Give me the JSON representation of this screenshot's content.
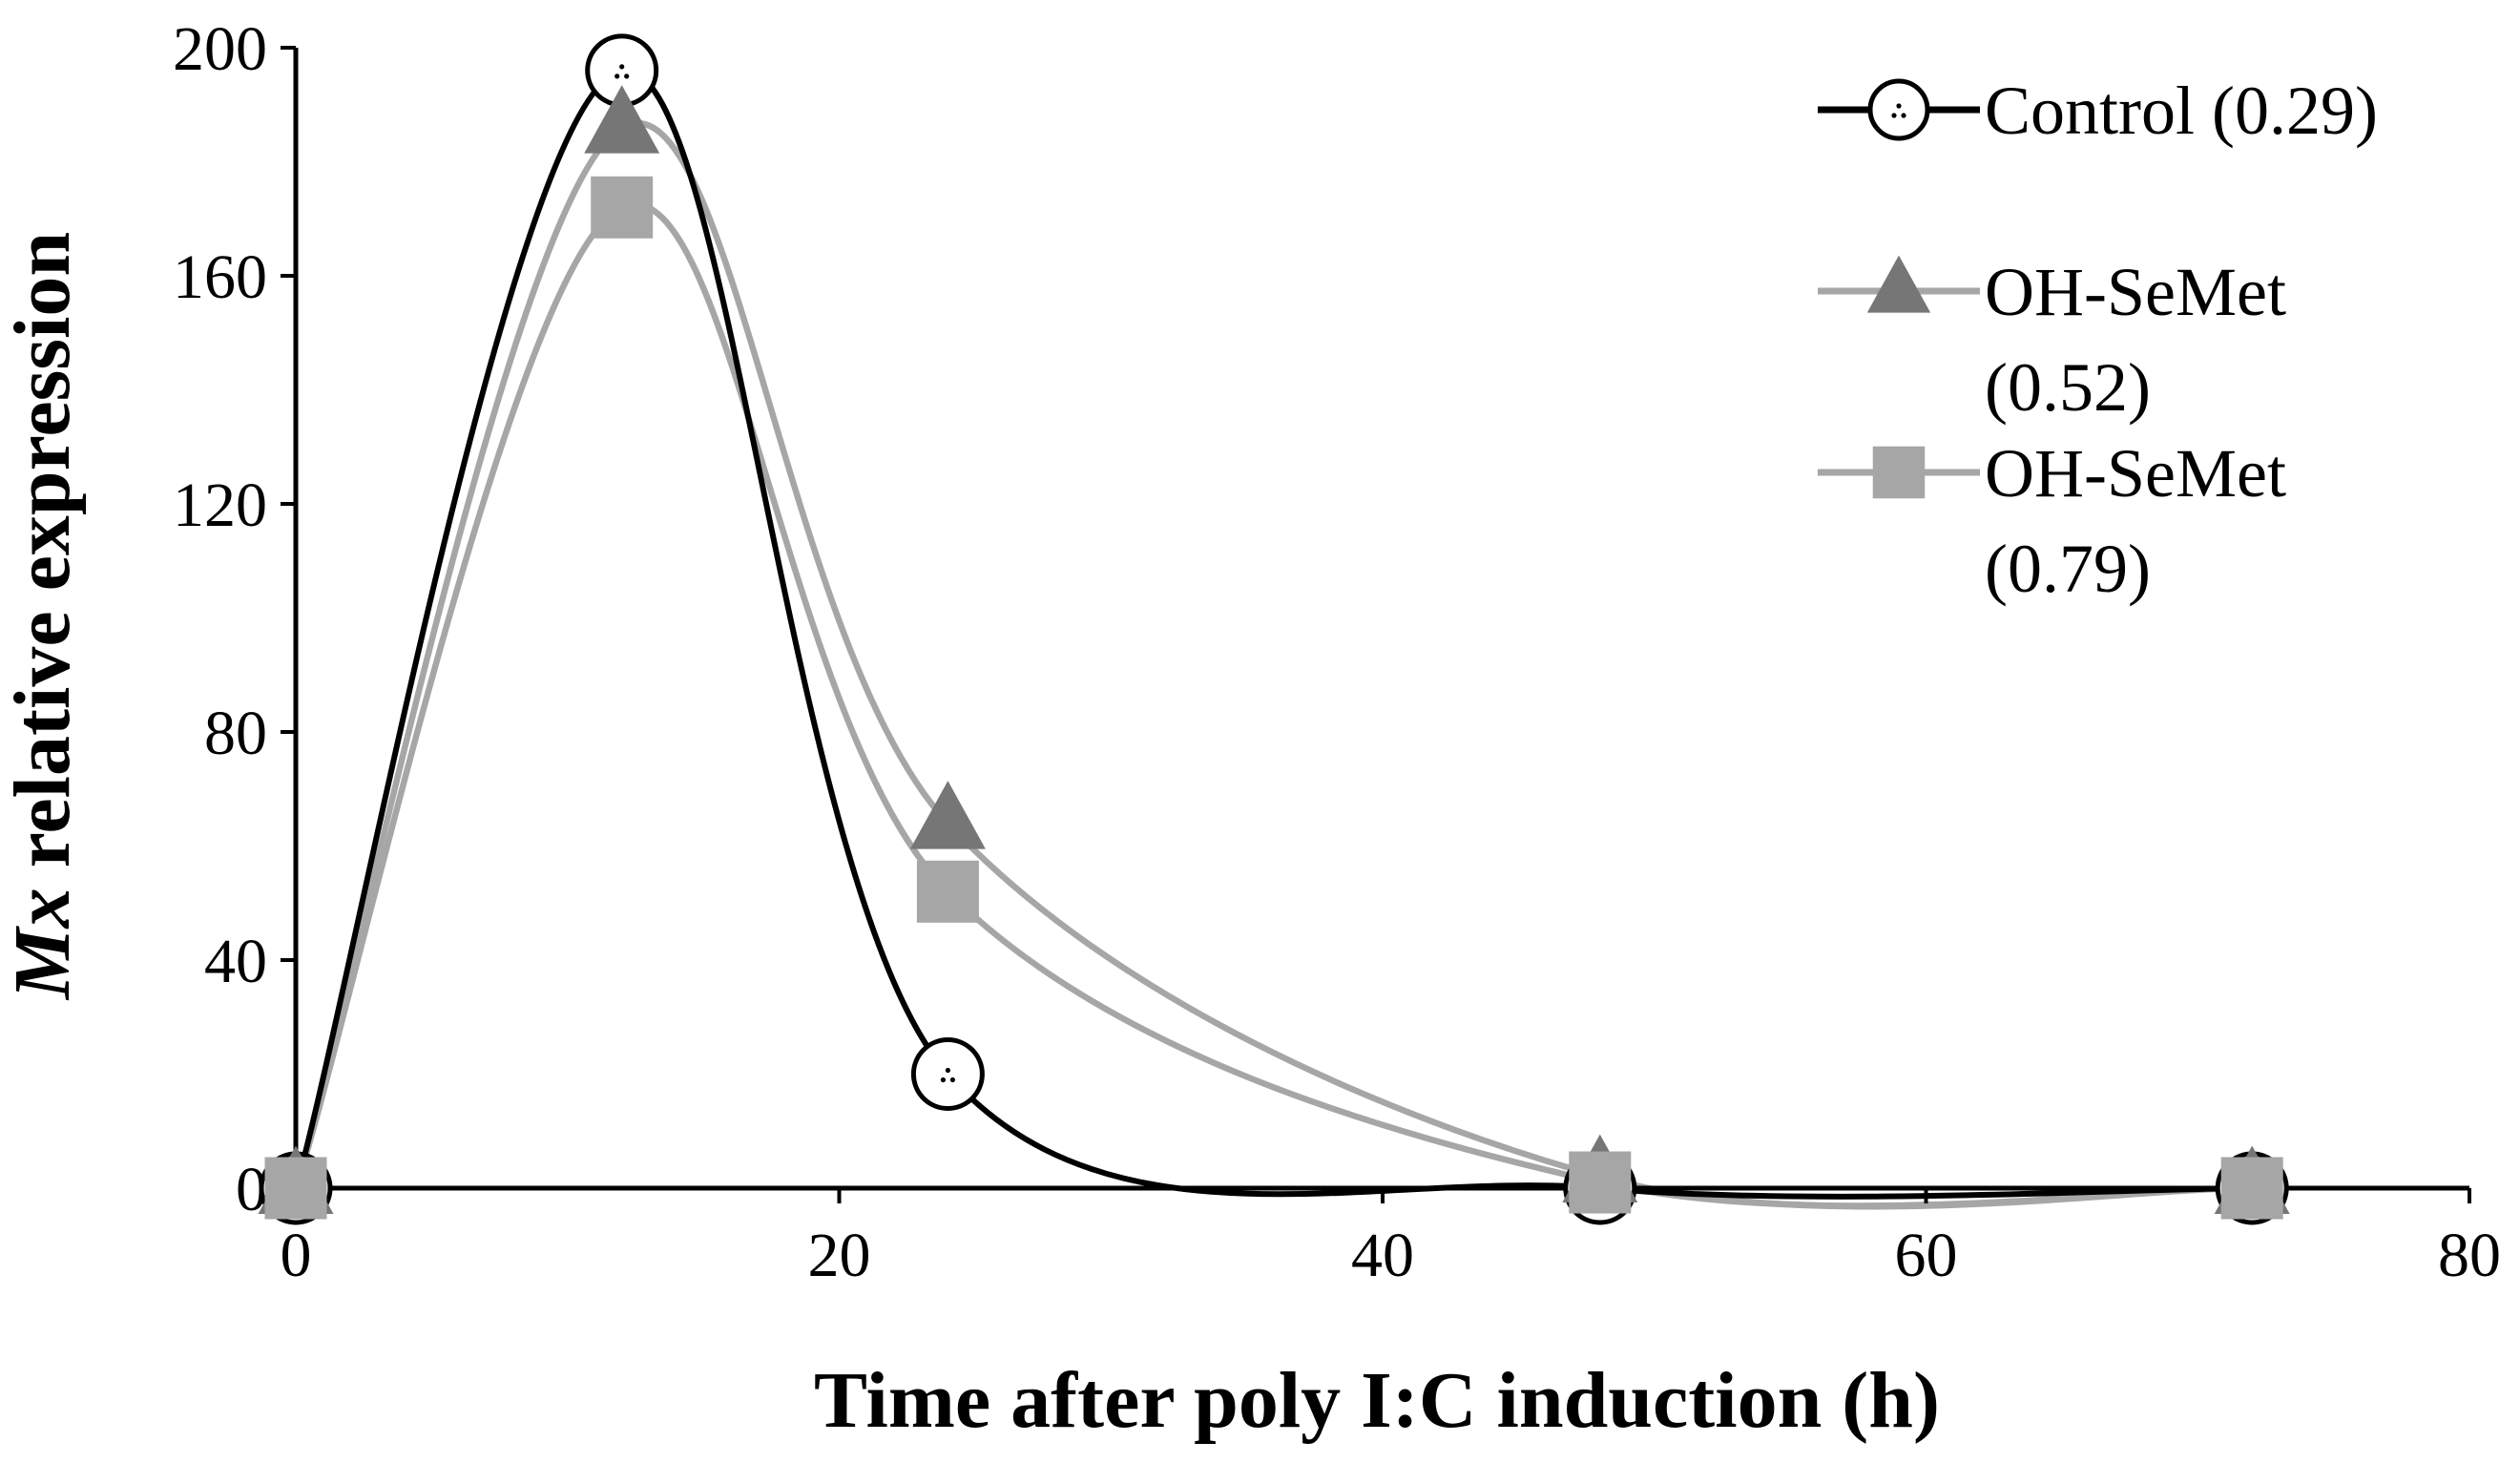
{
  "chart_data": {
    "type": "line",
    "title": "",
    "xlabel": "Time after poly I:C induction (h)",
    "ylabel_italic": "Mx",
    "ylabel_rest": " relative expression",
    "xlim": [
      0,
      80
    ],
    "ylim": [
      0,
      200
    ],
    "xticks": [
      0,
      20,
      40,
      60,
      80
    ],
    "yticks": [
      0,
      40,
      80,
      120,
      160,
      200
    ],
    "x": [
      0,
      12,
      24,
      48,
      72
    ],
    "grid": false,
    "legend_position": "top-right",
    "series": [
      {
        "name": "Control (0.29)",
        "label_lines": [
          "Control (0.29)"
        ],
        "values": [
          0,
          196,
          20,
          0,
          0
        ],
        "marker": "circle",
        "line_color": "#000000",
        "marker_fill": "#ffffff",
        "marker_stroke": "#000000"
      },
      {
        "name": "OH-SeMet (0.52)",
        "label_lines": [
          "OH-SeMet",
          "(0.52)"
        ],
        "values": [
          0,
          186,
          64,
          2,
          0
        ],
        "marker": "triangle",
        "line_color": "#a6a6a6",
        "marker_fill": "#767676",
        "marker_stroke": "#767676"
      },
      {
        "name": "OH-SeMet (0.79)",
        "label_lines": [
          "OH-SeMet",
          "(0.79)"
        ],
        "values": [
          0,
          172,
          52,
          1,
          0
        ],
        "marker": "square",
        "line_color": "#a6a6a6",
        "marker_fill": "#a6a6a6",
        "marker_stroke": "#a6a6a6"
      }
    ]
  }
}
